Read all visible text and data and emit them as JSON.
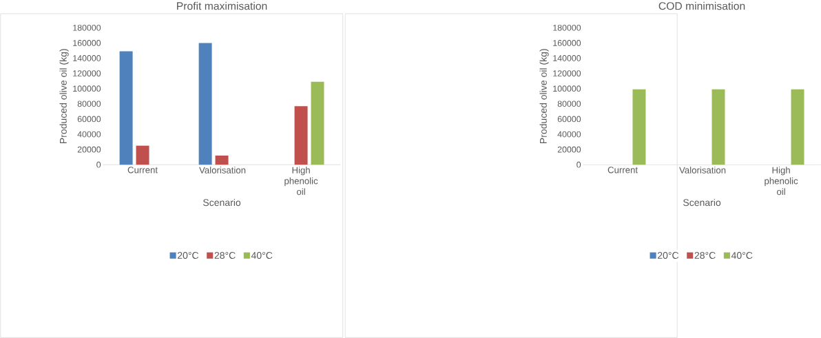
{
  "chart_data": [
    {
      "type": "bar",
      "title": "Profit maximisation",
      "xlabel": "Scenario",
      "ylabel": "Produced olive oil (kg)",
      "categories": [
        "Current",
        "Valorisation",
        "High phenolic oil"
      ],
      "ylim": [
        0,
        180000
      ],
      "yticks": [
        0,
        20000,
        40000,
        60000,
        80000,
        100000,
        120000,
        140000,
        160000,
        180000
      ],
      "legend": "bottom",
      "series": [
        {
          "name": "20°C",
          "color": "#4f81bd",
          "values": [
            149000,
            160000,
            null
          ]
        },
        {
          "name": "28°C",
          "color": "#c0504d",
          "values": [
            25000,
            12000,
            77000
          ]
        },
        {
          "name": "40°C",
          "color": "#9bbb59",
          "values": [
            null,
            null,
            109000
          ]
        }
      ]
    },
    {
      "type": "bar",
      "title": "COD minimisation",
      "xlabel": "Scenario",
      "ylabel": "Produced olive oil (kg)",
      "categories": [
        "Current",
        "Valorisation",
        "High phenolic oil"
      ],
      "ylim": [
        0,
        180000
      ],
      "yticks": [
        0,
        20000,
        40000,
        60000,
        80000,
        100000,
        120000,
        140000,
        160000,
        180000
      ],
      "legend": "bottom",
      "series": [
        {
          "name": "20°C",
          "color": "#4f81bd",
          "values": [
            null,
            null,
            null
          ]
        },
        {
          "name": "28°C",
          "color": "#c0504d",
          "values": [
            null,
            null,
            null
          ]
        },
        {
          "name": "40°C",
          "color": "#9bbb59",
          "values": [
            99000,
            99000,
            99000
          ]
        }
      ]
    }
  ]
}
